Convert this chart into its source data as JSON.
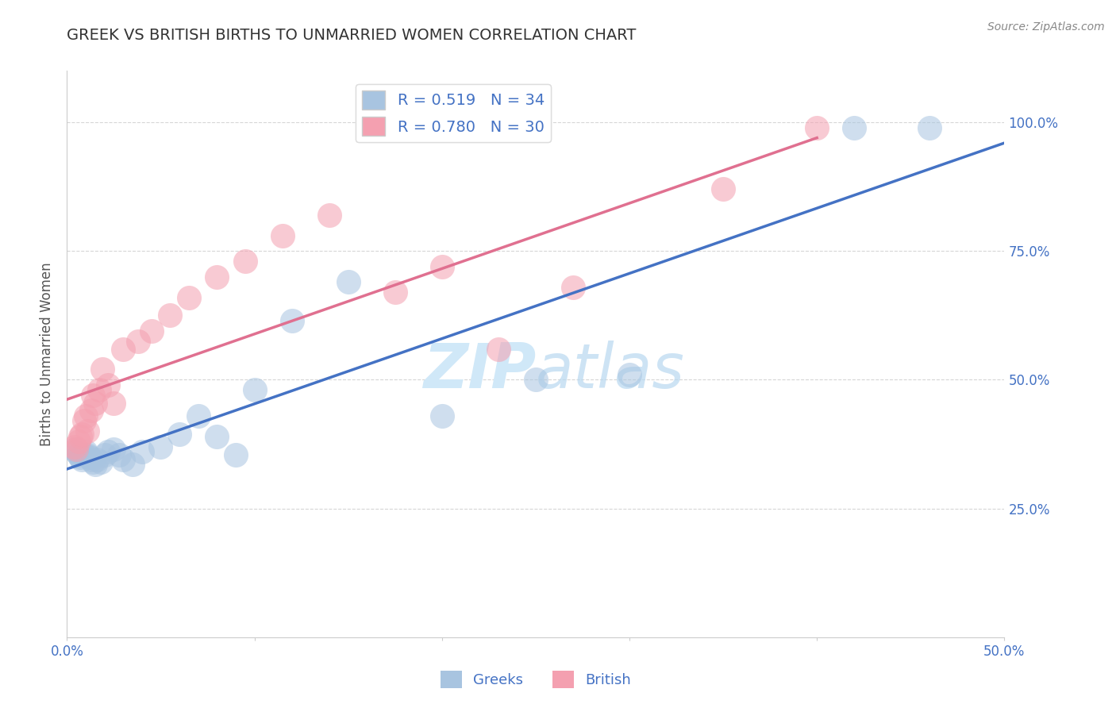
{
  "title": "GREEK VS BRITISH BIRTHS TO UNMARRIED WOMEN CORRELATION CHART",
  "source": "Source: ZipAtlas.com",
  "ylabel": "Births to Unmarried Women",
  "xlim": [
    0.0,
    0.5
  ],
  "ylim": [
    0.0,
    1.1
  ],
  "xticks": [
    0.0,
    0.1,
    0.2,
    0.3,
    0.4,
    0.5
  ],
  "xtick_labels": [
    "0.0%",
    "",
    "",
    "",
    "",
    "50.0%"
  ],
  "yticks": [
    0.25,
    0.5,
    0.75,
    1.0
  ],
  "ytick_labels": [
    "25.0%",
    "50.0%",
    "75.0%",
    "100.0%"
  ],
  "greek_R": 0.519,
  "greek_N": 34,
  "british_R": 0.78,
  "british_N": 30,
  "greek_color": "#a8c4e0",
  "british_color": "#f4a0b0",
  "greek_line_color": "#4472c4",
  "british_line_color": "#e07090",
  "watermark_color": "#d0e8f8",
  "background_color": "#ffffff",
  "grid_color": "#cccccc",
  "title_color": "#333333",
  "axis_label_color": "#4472c4",
  "greeks_x": [
    0.004,
    0.005,
    0.006,
    0.007,
    0.008,
    0.009,
    0.01,
    0.011,
    0.012,
    0.013,
    0.014,
    0.015,
    0.016,
    0.018,
    0.02,
    0.022,
    0.025,
    0.028,
    0.03,
    0.035,
    0.04,
    0.05,
    0.06,
    0.07,
    0.08,
    0.09,
    0.1,
    0.12,
    0.15,
    0.2,
    0.25,
    0.3,
    0.42,
    0.46
  ],
  "greeks_y": [
    0.365,
    0.36,
    0.355,
    0.35,
    0.345,
    0.355,
    0.36,
    0.355,
    0.35,
    0.345,
    0.34,
    0.335,
    0.345,
    0.34,
    0.355,
    0.36,
    0.365,
    0.355,
    0.345,
    0.335,
    0.36,
    0.37,
    0.395,
    0.43,
    0.39,
    0.355,
    0.48,
    0.615,
    0.69,
    0.43,
    0.5,
    0.51,
    0.99,
    0.99
  ],
  "british_x": [
    0.004,
    0.005,
    0.006,
    0.007,
    0.008,
    0.009,
    0.01,
    0.011,
    0.013,
    0.014,
    0.015,
    0.017,
    0.019,
    0.022,
    0.025,
    0.03,
    0.038,
    0.045,
    0.055,
    0.065,
    0.08,
    0.095,
    0.115,
    0.14,
    0.175,
    0.2,
    0.23,
    0.27,
    0.35,
    0.4
  ],
  "british_y": [
    0.37,
    0.365,
    0.38,
    0.39,
    0.395,
    0.42,
    0.43,
    0.4,
    0.44,
    0.47,
    0.455,
    0.48,
    0.52,
    0.49,
    0.455,
    0.56,
    0.575,
    0.595,
    0.625,
    0.66,
    0.7,
    0.73,
    0.78,
    0.82,
    0.67,
    0.72,
    0.56,
    0.68,
    0.87,
    0.99
  ]
}
